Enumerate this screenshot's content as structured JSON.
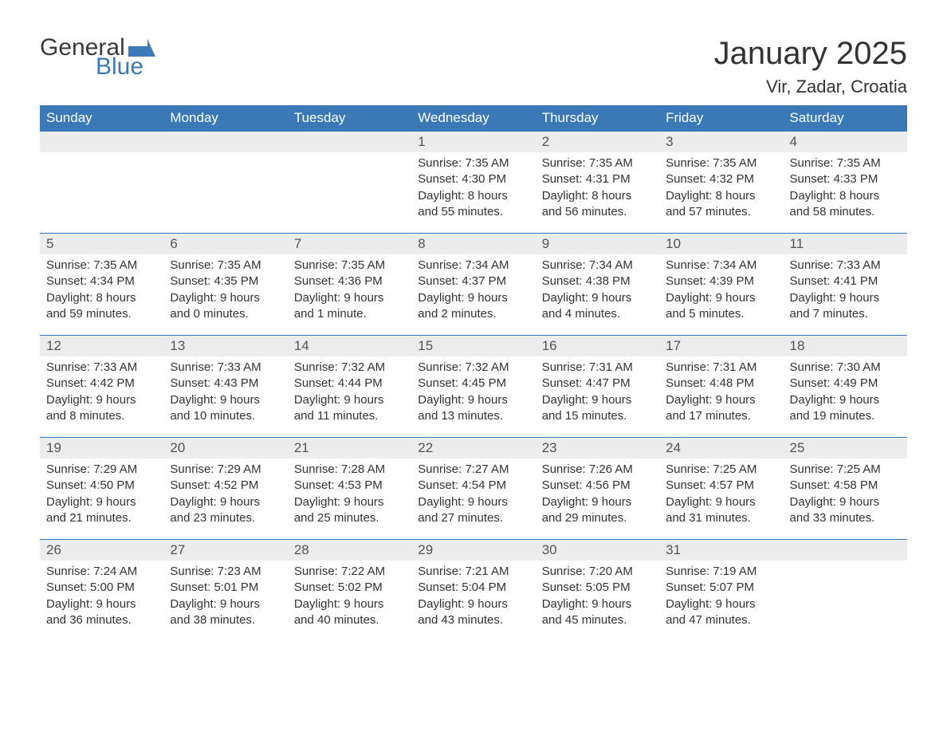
{
  "logo": {
    "general": "General",
    "blue": "Blue"
  },
  "title": "January 2025",
  "location": "Vir, Zadar, Croatia",
  "colors": {
    "header_bg": "#3b78b8",
    "header_text": "#ffffff",
    "daynum_bg": "#ececec",
    "daynum_text": "#555555",
    "body_text": "#333333",
    "rule": "#3b78b8",
    "logo_general": "#3a3a3a",
    "logo_blue": "#3b78b8"
  },
  "weekdays": [
    "Sunday",
    "Monday",
    "Tuesday",
    "Wednesday",
    "Thursday",
    "Friday",
    "Saturday"
  ],
  "weeks": [
    [
      null,
      null,
      null,
      {
        "n": "1",
        "sunrise": "7:35 AM",
        "sunset": "4:30 PM",
        "daylight": "8 hours and 55 minutes."
      },
      {
        "n": "2",
        "sunrise": "7:35 AM",
        "sunset": "4:31 PM",
        "daylight": "8 hours and 56 minutes."
      },
      {
        "n": "3",
        "sunrise": "7:35 AM",
        "sunset": "4:32 PM",
        "daylight": "8 hours and 57 minutes."
      },
      {
        "n": "4",
        "sunrise": "7:35 AM",
        "sunset": "4:33 PM",
        "daylight": "8 hours and 58 minutes."
      }
    ],
    [
      {
        "n": "5",
        "sunrise": "7:35 AM",
        "sunset": "4:34 PM",
        "daylight": "8 hours and 59 minutes."
      },
      {
        "n": "6",
        "sunrise": "7:35 AM",
        "sunset": "4:35 PM",
        "daylight": "9 hours and 0 minutes."
      },
      {
        "n": "7",
        "sunrise": "7:35 AM",
        "sunset": "4:36 PM",
        "daylight": "9 hours and 1 minute."
      },
      {
        "n": "8",
        "sunrise": "7:34 AM",
        "sunset": "4:37 PM",
        "daylight": "9 hours and 2 minutes."
      },
      {
        "n": "9",
        "sunrise": "7:34 AM",
        "sunset": "4:38 PM",
        "daylight": "9 hours and 4 minutes."
      },
      {
        "n": "10",
        "sunrise": "7:34 AM",
        "sunset": "4:39 PM",
        "daylight": "9 hours and 5 minutes."
      },
      {
        "n": "11",
        "sunrise": "7:33 AM",
        "sunset": "4:41 PM",
        "daylight": "9 hours and 7 minutes."
      }
    ],
    [
      {
        "n": "12",
        "sunrise": "7:33 AM",
        "sunset": "4:42 PM",
        "daylight": "9 hours and 8 minutes."
      },
      {
        "n": "13",
        "sunrise": "7:33 AM",
        "sunset": "4:43 PM",
        "daylight": "9 hours and 10 minutes."
      },
      {
        "n": "14",
        "sunrise": "7:32 AM",
        "sunset": "4:44 PM",
        "daylight": "9 hours and 11 minutes."
      },
      {
        "n": "15",
        "sunrise": "7:32 AM",
        "sunset": "4:45 PM",
        "daylight": "9 hours and 13 minutes."
      },
      {
        "n": "16",
        "sunrise": "7:31 AM",
        "sunset": "4:47 PM",
        "daylight": "9 hours and 15 minutes."
      },
      {
        "n": "17",
        "sunrise": "7:31 AM",
        "sunset": "4:48 PM",
        "daylight": "9 hours and 17 minutes."
      },
      {
        "n": "18",
        "sunrise": "7:30 AM",
        "sunset": "4:49 PM",
        "daylight": "9 hours and 19 minutes."
      }
    ],
    [
      {
        "n": "19",
        "sunrise": "7:29 AM",
        "sunset": "4:50 PM",
        "daylight": "9 hours and 21 minutes."
      },
      {
        "n": "20",
        "sunrise": "7:29 AM",
        "sunset": "4:52 PM",
        "daylight": "9 hours and 23 minutes."
      },
      {
        "n": "21",
        "sunrise": "7:28 AM",
        "sunset": "4:53 PM",
        "daylight": "9 hours and 25 minutes."
      },
      {
        "n": "22",
        "sunrise": "7:27 AM",
        "sunset": "4:54 PM",
        "daylight": "9 hours and 27 minutes."
      },
      {
        "n": "23",
        "sunrise": "7:26 AM",
        "sunset": "4:56 PM",
        "daylight": "9 hours and 29 minutes."
      },
      {
        "n": "24",
        "sunrise": "7:25 AM",
        "sunset": "4:57 PM",
        "daylight": "9 hours and 31 minutes."
      },
      {
        "n": "25",
        "sunrise": "7:25 AM",
        "sunset": "4:58 PM",
        "daylight": "9 hours and 33 minutes."
      }
    ],
    [
      {
        "n": "26",
        "sunrise": "7:24 AM",
        "sunset": "5:00 PM",
        "daylight": "9 hours and 36 minutes."
      },
      {
        "n": "27",
        "sunrise": "7:23 AM",
        "sunset": "5:01 PM",
        "daylight": "9 hours and 38 minutes."
      },
      {
        "n": "28",
        "sunrise": "7:22 AM",
        "sunset": "5:02 PM",
        "daylight": "9 hours and 40 minutes."
      },
      {
        "n": "29",
        "sunrise": "7:21 AM",
        "sunset": "5:04 PM",
        "daylight": "9 hours and 43 minutes."
      },
      {
        "n": "30",
        "sunrise": "7:20 AM",
        "sunset": "5:05 PM",
        "daylight": "9 hours and 45 minutes."
      },
      {
        "n": "31",
        "sunrise": "7:19 AM",
        "sunset": "5:07 PM",
        "daylight": "9 hours and 47 minutes."
      },
      null
    ]
  ],
  "labels": {
    "sunrise": "Sunrise: ",
    "sunset": "Sunset: ",
    "daylight": "Daylight: "
  }
}
